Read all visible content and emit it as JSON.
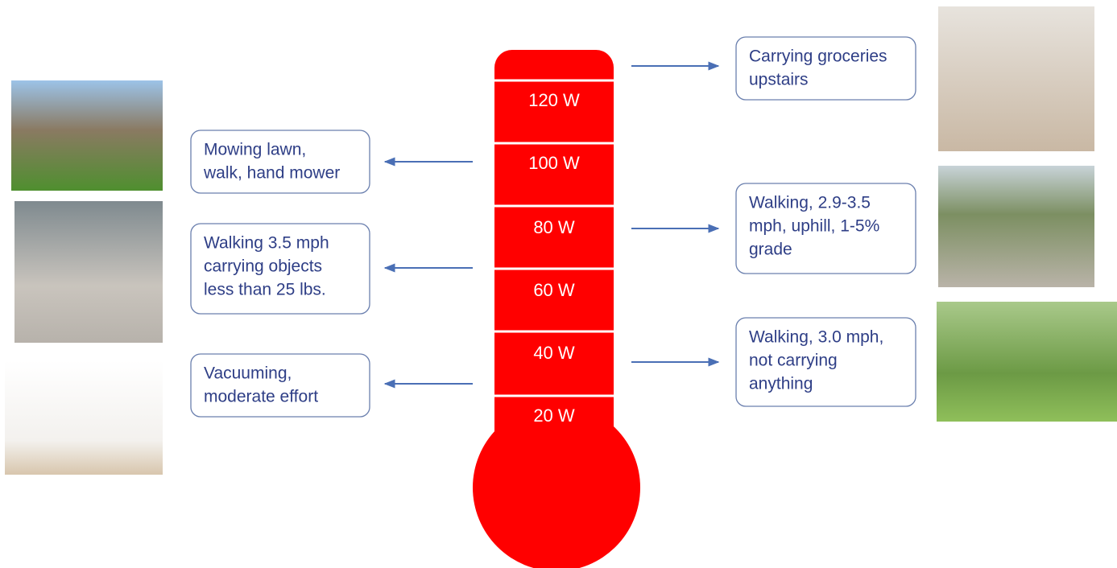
{
  "thermometer": {
    "labels": [
      "120 W",
      "100 W",
      "80 W",
      "60 W",
      "40 W",
      "20 W"
    ]
  },
  "left_activities": [
    {
      "lines": [
        "Mowing lawn,",
        "walk, hand mower"
      ]
    },
    {
      "lines": [
        "Walking 3.5 mph",
        "carrying objects",
        "less than 25 lbs."
      ]
    },
    {
      "lines": [
        "Vacuuming,",
        "moderate effort"
      ]
    }
  ],
  "right_activities": [
    {
      "lines": [
        "Carrying groceries",
        "upstairs"
      ]
    },
    {
      "lines": [
        "Walking, 2.9-3.5",
        "mph, uphill, 1-5%",
        "grade"
      ]
    },
    {
      "lines": [
        "Walking, 3.0 mph,",
        "not carrying",
        "anything"
      ]
    }
  ]
}
